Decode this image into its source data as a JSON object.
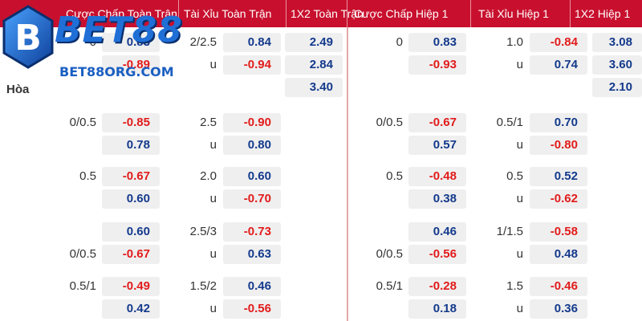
{
  "brand": {
    "logo_letter": "B",
    "name": "BET88",
    "subtitle": "BET88ORG.COM"
  },
  "headers": {
    "ft_handicap": "Cược Chấp Toàn Trận",
    "ft_overunder": "Tài Xỉu Toàn Trận",
    "ft_1x2": "1X2 Toàn Trận",
    "h1_handicap": "Cược Chấp Hiệp 1",
    "h1_overunder": "Tài Xỉu Hiệp 1",
    "h1_1x2": "1X2 Hiệp 1"
  },
  "row_label": "Hòa",
  "markets": [
    {
      "ft_hdp": {
        "line1": "0",
        "odd1": "0.83",
        "line2": "",
        "odd2": "-0.89"
      },
      "ft_ou": {
        "line1": "2/2.5",
        "odd1": "0.84",
        "line2": "u",
        "odd2": "-0.94"
      },
      "ft_1x2": [
        "2.49",
        "2.84",
        "3.40"
      ],
      "h1_hdp": {
        "line1": "0",
        "odd1": "0.83",
        "line2": "",
        "odd2": "-0.93"
      },
      "h1_ou": {
        "line1": "1.0",
        "odd1": "-0.84",
        "line2": "u",
        "odd2": "0.74"
      },
      "h1_1x2": [
        "3.08",
        "3.60",
        "2.10"
      ]
    },
    {
      "ft_hdp": {
        "line1": "0/0.5",
        "odd1": "-0.85",
        "line2": "",
        "odd2": "0.78"
      },
      "ft_ou": {
        "line1": "2.5",
        "odd1": "-0.90",
        "line2": "u",
        "odd2": "0.80"
      },
      "h1_hdp": {
        "line1": "0/0.5",
        "odd1": "-0.67",
        "line2": "",
        "odd2": "0.57"
      },
      "h1_ou": {
        "line1": "0.5/1",
        "odd1": "0.70",
        "line2": "u",
        "odd2": "-0.80"
      }
    },
    {
      "ft_hdp": {
        "line1": "0.5",
        "odd1": "-0.67",
        "line2": "",
        "odd2": "0.60"
      },
      "ft_ou": {
        "line1": "2.0",
        "odd1": "0.60",
        "line2": "u",
        "odd2": "-0.70"
      },
      "h1_hdp": {
        "line1": "0.5",
        "odd1": "-0.48",
        "line2": "",
        "odd2": "0.38"
      },
      "h1_ou": {
        "line1": "0.5",
        "odd1": "0.52",
        "line2": "u",
        "odd2": "-0.62"
      }
    },
    {
      "ft_hdp": {
        "line1": "",
        "odd1": "0.60",
        "line2": "0/0.5",
        "odd2": "-0.67"
      },
      "ft_ou": {
        "line1": "2.5/3",
        "odd1": "-0.73",
        "line2": "u",
        "odd2": "0.63"
      },
      "h1_hdp": {
        "line1": "",
        "odd1": "0.46",
        "line2": "0/0.5",
        "odd2": "-0.56"
      },
      "h1_ou": {
        "line1": "1/1.5",
        "odd1": "-0.58",
        "line2": "u",
        "odd2": "0.48"
      }
    },
    {
      "ft_hdp": {
        "line1": "0.5/1",
        "odd1": "-0.49",
        "line2": "",
        "odd2": "0.42"
      },
      "ft_ou": {
        "line1": "1.5/2",
        "odd1": "0.46",
        "line2": "u",
        "odd2": "-0.56"
      },
      "h1_hdp": {
        "line1": "0.5/1",
        "odd1": "-0.28",
        "line2": "",
        "odd2": "0.18"
      },
      "h1_ou": {
        "line1": "1.5",
        "odd1": "-0.46",
        "line2": "u",
        "odd2": "0.36"
      }
    }
  ],
  "colors": {
    "header_bg": "#c8102e",
    "negative_odd": "#e21b1b",
    "positive_odd": "#143a8c",
    "odd_cell_bg": "#efefef",
    "brand_blue": "#1f6fd6"
  }
}
